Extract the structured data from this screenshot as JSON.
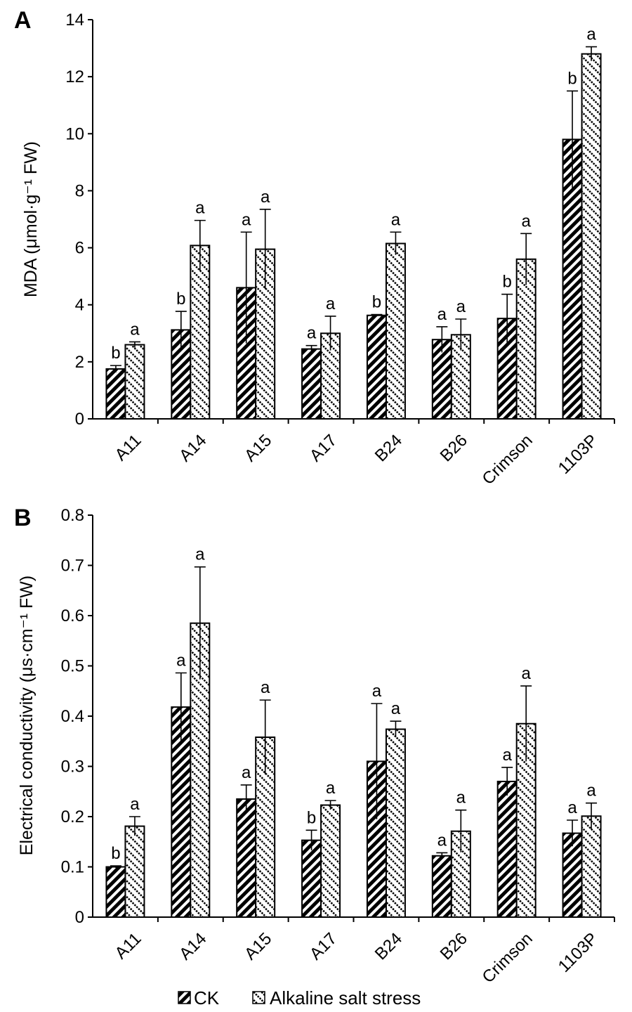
{
  "legend": [
    {
      "name": "CK",
      "pattern": "pat-ck"
    },
    {
      "name": "Alkaline salt stress",
      "pattern": "pat-salt"
    }
  ],
  "chart_data": [
    {
      "panel": "A",
      "type": "bar",
      "ylabel": "MDA (μmol·g⁻¹ FW)",
      "categories": [
        "A11",
        "A14",
        "A15",
        "A17",
        "B24",
        "B26",
        "Crimson",
        "1103P"
      ],
      "ylim": [
        0,
        14
      ],
      "yticks": [
        "0",
        "2",
        "4",
        "6",
        "8",
        "10",
        "12",
        "14"
      ],
      "series": [
        {
          "name": "CK",
          "values": [
            1.75,
            3.12,
            4.6,
            2.45,
            3.63,
            2.78,
            3.52,
            9.8
          ],
          "errors": [
            0.12,
            0.65,
            1.95,
            0.12,
            0.03,
            0.45,
            0.85,
            1.7
          ],
          "letters": [
            "b",
            "b",
            "a",
            "a",
            "b",
            "a",
            "b",
            "b"
          ]
        },
        {
          "name": "Alkaline salt stress",
          "values": [
            2.6,
            6.08,
            5.95,
            3.0,
            6.15,
            2.95,
            5.6,
            12.8
          ],
          "errors": [
            0.1,
            0.88,
            1.4,
            0.6,
            0.4,
            0.55,
            0.9,
            0.25
          ],
          "letters": [
            "a",
            "a",
            "a",
            "a",
            "a",
            "a",
            "a",
            "a"
          ]
        }
      ],
      "grid": false,
      "legend_position": "bottom"
    },
    {
      "panel": "B",
      "type": "bar",
      "ylabel": "Electrical conductivity (μs·cm⁻¹ FW)",
      "categories": [
        "A11",
        "A14",
        "A15",
        "A17",
        "B24",
        "B26",
        "Crimson",
        "1103P"
      ],
      "ylim": [
        0,
        0.8
      ],
      "yticks": [
        "0",
        "0.1",
        "0.2",
        "0.3",
        "0.4",
        "0.5",
        "0.6",
        "0.7",
        "0.8"
      ],
      "series": [
        {
          "name": "CK",
          "values": [
            0.1,
            0.418,
            0.235,
            0.153,
            0.31,
            0.122,
            0.27,
            0.167
          ],
          "errors": [
            0.002,
            0.068,
            0.028,
            0.02,
            0.115,
            0.006,
            0.028,
            0.026
          ],
          "letters": [
            "b",
            "a",
            "a",
            "b",
            "a",
            "a",
            "a",
            "a"
          ]
        },
        {
          "name": "Alkaline salt stress",
          "values": [
            0.181,
            0.585,
            0.358,
            0.223,
            0.374,
            0.171,
            0.385,
            0.201
          ],
          "errors": [
            0.019,
            0.112,
            0.074,
            0.009,
            0.016,
            0.042,
            0.075,
            0.026
          ],
          "letters": [
            "a",
            "a",
            "a",
            "a",
            "a",
            "a",
            "a",
            "a"
          ]
        }
      ],
      "grid": false,
      "legend_position": "bottom"
    }
  ]
}
